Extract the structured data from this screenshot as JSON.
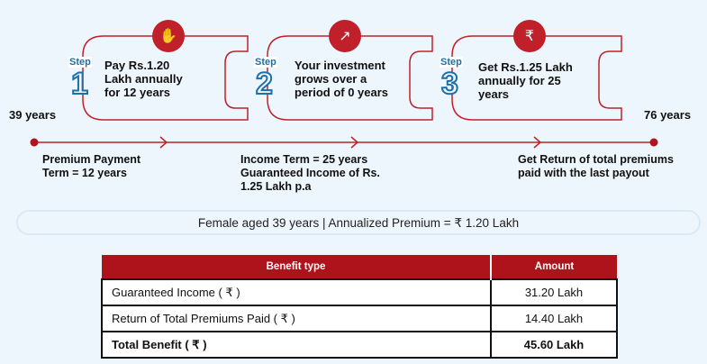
{
  "steps": [
    {
      "label": "Step",
      "number": "1",
      "text": [
        "Pay Rs.1.20",
        "Lakh annually",
        "for 12 years"
      ],
      "icon": "money-hand-icon"
    },
    {
      "label": "Step",
      "number": "2",
      "text": [
        "Your investment",
        "grows over a",
        "period of 0 years"
      ],
      "icon": "growth-chart-icon"
    },
    {
      "label": "Step",
      "number": "3",
      "text": [
        "Get Rs.1.25 Lakh",
        "annually for 25",
        "years"
      ],
      "icon": "money-bag-hand-icon"
    }
  ],
  "timeline": {
    "start_age": "39 years",
    "end_age": "76 years",
    "labels": [
      [
        "Premium Payment",
        "Term = 12 years"
      ],
      [
        "Income Term = 25 years",
        "Guaranteed Income of Rs.",
        "1.25 Lakh p.a"
      ],
      [
        "Get Return of total premiums",
        "paid with the last payout"
      ]
    ]
  },
  "summary": "Female aged 39 years | Annualized Premium = ₹  1.20 Lakh",
  "table": {
    "headers": [
      "Benefit type",
      "Amount"
    ],
    "rows": [
      [
        "Guaranteed Income ( ₹ )",
        "31.20 Lakh"
      ],
      [
        "Return of Total Premiums Paid ( ₹ )",
        "14.40 Lakh"
      ],
      [
        "Total Benefit ( ₹ )",
        "45.60 Lakh"
      ]
    ]
  },
  "colors": {
    "accent": "#c0202a",
    "step_blue": "#1d6fa8",
    "background": "#eef6fd",
    "table_header": "#ae131b"
  }
}
